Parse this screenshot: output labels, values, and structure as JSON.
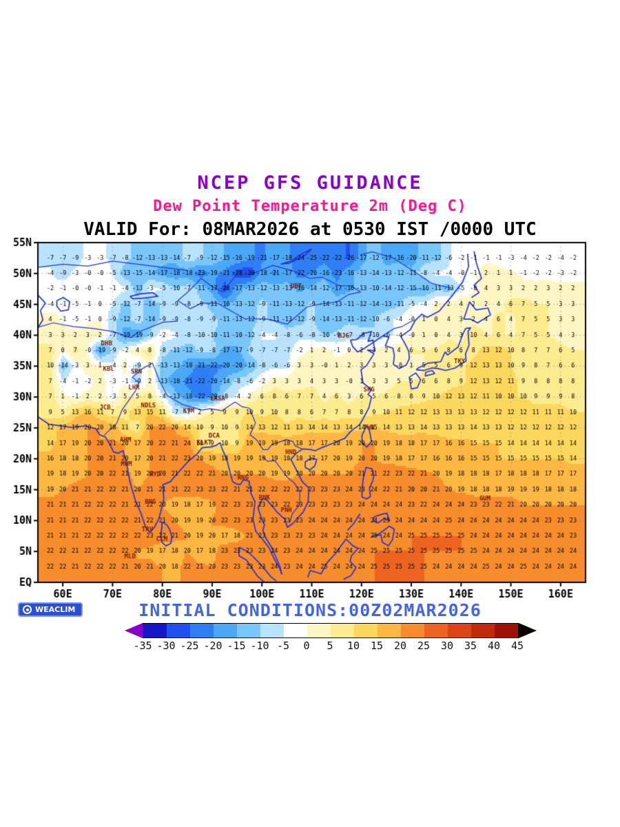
{
  "header": {
    "title": "NCEP GFS GUIDANCE",
    "subtitle": "Dew Point Temperature 2m (Deg C)",
    "valid_line": "VALID For: 08MAR2026 at 0530 IST /0000 UTC",
    "title_color": "#8c00cc",
    "subtitle_color": "#ff1493",
    "valid_color": "#000000"
  },
  "footer": {
    "initial_conditions": "INITIAL CONDITIONS:00Z02MAR2026",
    "initial_color": "#4565de",
    "brand": {
      "label": "WEACLIM",
      "bg": "#2a50d0"
    }
  },
  "axes": {
    "lat_labels": [
      "55N",
      "50N",
      "45N",
      "40N",
      "35N",
      "30N",
      "25N",
      "20N",
      "15N",
      "10N",
      "5N",
      "EQ"
    ],
    "lon_labels": [
      "60E",
      "70E",
      "80E",
      "90E",
      "100E",
      "110E",
      "120E",
      "130E",
      "140E",
      "150E",
      "160E"
    ],
    "lat_range": [
      0,
      55
    ],
    "lon_range": [
      55,
      165
    ]
  },
  "colorbar": {
    "tick_labels": [
      "-35",
      "-30",
      "-25",
      "-20",
      "-15",
      "-10",
      "-5",
      "0",
      "5",
      "10",
      "15",
      "20",
      "25",
      "30",
      "35",
      "40",
      "45"
    ],
    "segment_colors": [
      "#1616c8",
      "#2050f0",
      "#2f7ef5",
      "#4aa8f7",
      "#79c6fa",
      "#b9e3fd",
      "#ffffff",
      "#fdf6c3",
      "#fdeb8f",
      "#fcd75e",
      "#fdb843",
      "#f68c2b",
      "#ec6420",
      "#dd4416",
      "#c22a0c",
      "#9c1206"
    ],
    "under_color": "#8400c8",
    "over_color": "#0a0000"
  },
  "map": {
    "coast_color": "#2233dd",
    "number_color": "#000000",
    "city_color": "#7a1a00",
    "grid_dot_color": "#8a8a8a"
  },
  "cities": [
    {
      "code": "DHB",
      "lon": 68.8,
      "lat": 38.6
    },
    {
      "code": "KBL",
      "lon": 69.2,
      "lat": 34.5
    },
    {
      "code": "SRN",
      "lon": 74.8,
      "lat": 34.1
    },
    {
      "code": "LHR",
      "lon": 74.3,
      "lat": 31.5
    },
    {
      "code": "JCB",
      "lon": 68.5,
      "lat": 28.3
    },
    {
      "code": "NDLS",
      "lon": 77.2,
      "lat": 28.6
    },
    {
      "code": "KTM",
      "lon": 85.3,
      "lat": 27.7
    },
    {
      "code": "LASA",
      "lon": 91.1,
      "lat": 29.7
    },
    {
      "code": "AHM",
      "lon": 72.6,
      "lat": 23.0
    },
    {
      "code": "DCA",
      "lon": 90.4,
      "lat": 23.7
    },
    {
      "code": "KLKT",
      "lon": 88.4,
      "lat": 22.6
    },
    {
      "code": "MUM",
      "lon": 72.8,
      "lat": 19.1
    },
    {
      "code": "HYD",
      "lon": 78.5,
      "lat": 17.4
    },
    {
      "code": "RNG",
      "lon": 96.2,
      "lat": 16.9
    },
    {
      "code": "BNG",
      "lon": 77.6,
      "lat": 13.0
    },
    {
      "code": "BNK",
      "lon": 100.5,
      "lat": 13.7
    },
    {
      "code": "PNH",
      "lon": 104.9,
      "lat": 11.6
    },
    {
      "code": "HND",
      "lon": 105.8,
      "lat": 21.0
    },
    {
      "code": "TRV",
      "lon": 77.0,
      "lat": 8.5
    },
    {
      "code": "CLM",
      "lon": 79.9,
      "lat": 6.9
    },
    {
      "code": "MLD",
      "lon": 73.5,
      "lat": 4.2
    },
    {
      "code": "SHG",
      "lon": 121.5,
      "lat": 31.2
    },
    {
      "code": "TWN",
      "lon": 121.5,
      "lat": 25.0
    },
    {
      "code": "BJG",
      "lon": 116.4,
      "lat": 39.9
    },
    {
      "code": "UBT",
      "lon": 106.9,
      "lat": 47.9
    },
    {
      "code": "TKY",
      "lon": 139.7,
      "lat": 35.7
    },
    {
      "code": "GUM",
      "lon": 144.8,
      "lat": 13.5
    }
  ],
  "chart_data": {
    "type": "heatmap",
    "title": "Dew Point Temperature 2m (Deg C)",
    "units": "Deg C",
    "levels": [
      -35,
      -30,
      -25,
      -20,
      -15,
      -10,
      -5,
      0,
      5,
      10,
      15,
      20,
      25,
      30,
      35,
      40,
      45
    ],
    "grid": {
      "lon_start": 57.5,
      "lon_step": 2.5,
      "lat_start": 52.5,
      "lat_step": -2.5,
      "rows": [
        "-7 -7 -9 -3 -3 -7 -8 -12 -13 -13 -14 -7 -9 -12 -15 -16 -19 -21 -17 -18 -24 -25 -22 -22 -26 -17 -12 -17 -16 -20 -11 -12 -6 -2 -1 -1 -1 -3 -4 -2 -2 -4 -2",
        "-4 -9 -3 -0 -0 -5 -13 -15 -14 -17 -18 -18 -23 -19 -21 -28 -30 -18 -21 -17 -22 -20 -16 -23 -16 -13 -14 -13 -12 -11 -8 -4 -4 -0 -1 2 1 1 -1 -2 -2 -3 -2",
        "-2 -1 -0 -0 -1 -1 -4 -13 -3 -5 -10 -7 -11 -17 -28 -17 -13 -12 -13 -13 -16 -14 -12 -17 -16 -13 -10 -14 -12 -15 -16 -11 -13 -5 -0 4 3 3 2 2 3 2 2",
        "-4 -1 -5 -1 0 -5 -12 -7 -14 -9 -9 -8 -9 -11 -16 -13 -12 -9 -11 -13 -12 -9 -14 -13 -11 -12 -14 -13 -11 -5 -4 2 2 4 2 2 4 6 7 5 5 3 3",
        "4 -1 -5 -1 0 -9 -12 -7 -14 -9 -9 -8 -9 -9 -11 -13 -12 -9 -11 -13 -12 -9 -14 -13 -11 -12 -10 -6 -4 -0 1 0 4 3 2 4 6 4 7 5 5 3 3",
        "3 3 2 3 2 -7 -19 -19 -9 -2 -4 -8 -10 -10 -11 -10 -12 -4 -4 -8 -6 -8 -10 -9 -7 -8 -10 -6 -4 -0 1 0 4 3 10 4 6 4 7 5 5 4 3",
        "7 0 7 -0 -19 -9 -2 4 8 -8 -11 -12 -9 -8 -17 -17 -9 -7 -7 -7 -2 1 2 -1 0 2 3 2 4 6 5 6 8 6 8 13 12 10 8 7 7 6 5",
        "10 -14 -3 3 1 -4 2 -9 2 -13 -13 -18 -21 -22 -20 -20 -14 -8 -6 -6 3 3 -0 1 2 3 3 3 -0 1 5 5 6 9 12 13 13 10 9 8 7 6 6",
        "7 -4 -1 -2 2 -3 -1 -9 2 -13 -18 -21 -22 -20 -14 -8 -6 -2 3 3 3 4 3 3 -0 1 3 3 5 5 6 6 8 9 12 13 12 11 9 8 8 8 8",
        "7 1 -1 2 2 -3 5 5 8 -4 -13 -18 -22 -20 -8 -4 2 6 8 6 7 7 4 6 3 6 5 6 8 8 9 10 12 13 12 11 10 10 10 9 9 9 8",
        "9 5 13 16 11 7 9 13 15 11 -7 -7 2 5 9 9 10 9 10 8 8 6 7 7 8 8 9 10 11 12 12 13 13 13 13 12 12 12 12 11 11 11 10",
        "12 17 19 20 20 18 11 7 20 22 20 14 10 9 10 9 14 13 12 11 13 14 14 13 14 14 15 14 13 13 14 13 13 13 14 13 13 12 12 12 12 12 12",
        "14 17 19 20 20 21 20 17 20 22 21 24 10 9 10 9 19 19 19 18 18 17 17 20 19 20 20 19 18 18 17 17 16 16 15 15 15 14 14 14 14 14 14",
        "16 18 18 20 20 21 20 17 20 21 22 23 20 19 18 19 19 19 19 18 18 17 17 20 19 20 20 19 18 17 17 16 16 16 15 15 15 15 15 15 15 15 14",
        "19 18 19 20 20 22 21 19 20 20 21 22 22 21 20 20 20 20 19 19 20 20 20 20 20 21 21 22 23 22 21 20 19 18 18 18 17 18 18 18 17 17 17",
        "19 20 21 21 22 22 21 20 21 21 21 22 23 23 22 21 21 22 22 22 22 23 23 23 24 23 24 22 21 20 20 21 20 19 18 18 18 19 19 19 18 18 18",
        "21 21 21 22 22 22 21 21 22 20 19 18 17 19 22 23 23 23 23 22 23 23 23 23 23 24 24 24 24 23 22 24 24 24 23 23 22 21 20 20 20 20 20",
        "21 21 21 22 22 22 22 21 22 21 20 19 19 20 22 23 23 23 23 23 23 24 24 24 24 24 24 25 24 24 24 24 25 24 24 24 24 24 24 24 23 23 23",
        "21 21 21 22 22 22 22 22 23 22 21 20 19 20 17 18 21 23 23 23 23 23 24 24 24 24 25 24 24 25 25 25 25 25 24 24 24 24 24 24 24 24 23",
        "22 22 21 22 22 22 22 20 19 17 18 20 17 18 23 23 23 23 24 23 24 24 24 24 24 24 25 25 25 25 25 25 25 25 25 24 24 24 24 24 24 24 24",
        "22 22 21 22 22 22 21 20 21 20 18 22 21 20 23 23 23 23 24 23 24 24 25 24 24 24 25 25 25 25 25 24 24 24 24 25 24 24 25 24 24 24 24"
      ]
    }
  }
}
